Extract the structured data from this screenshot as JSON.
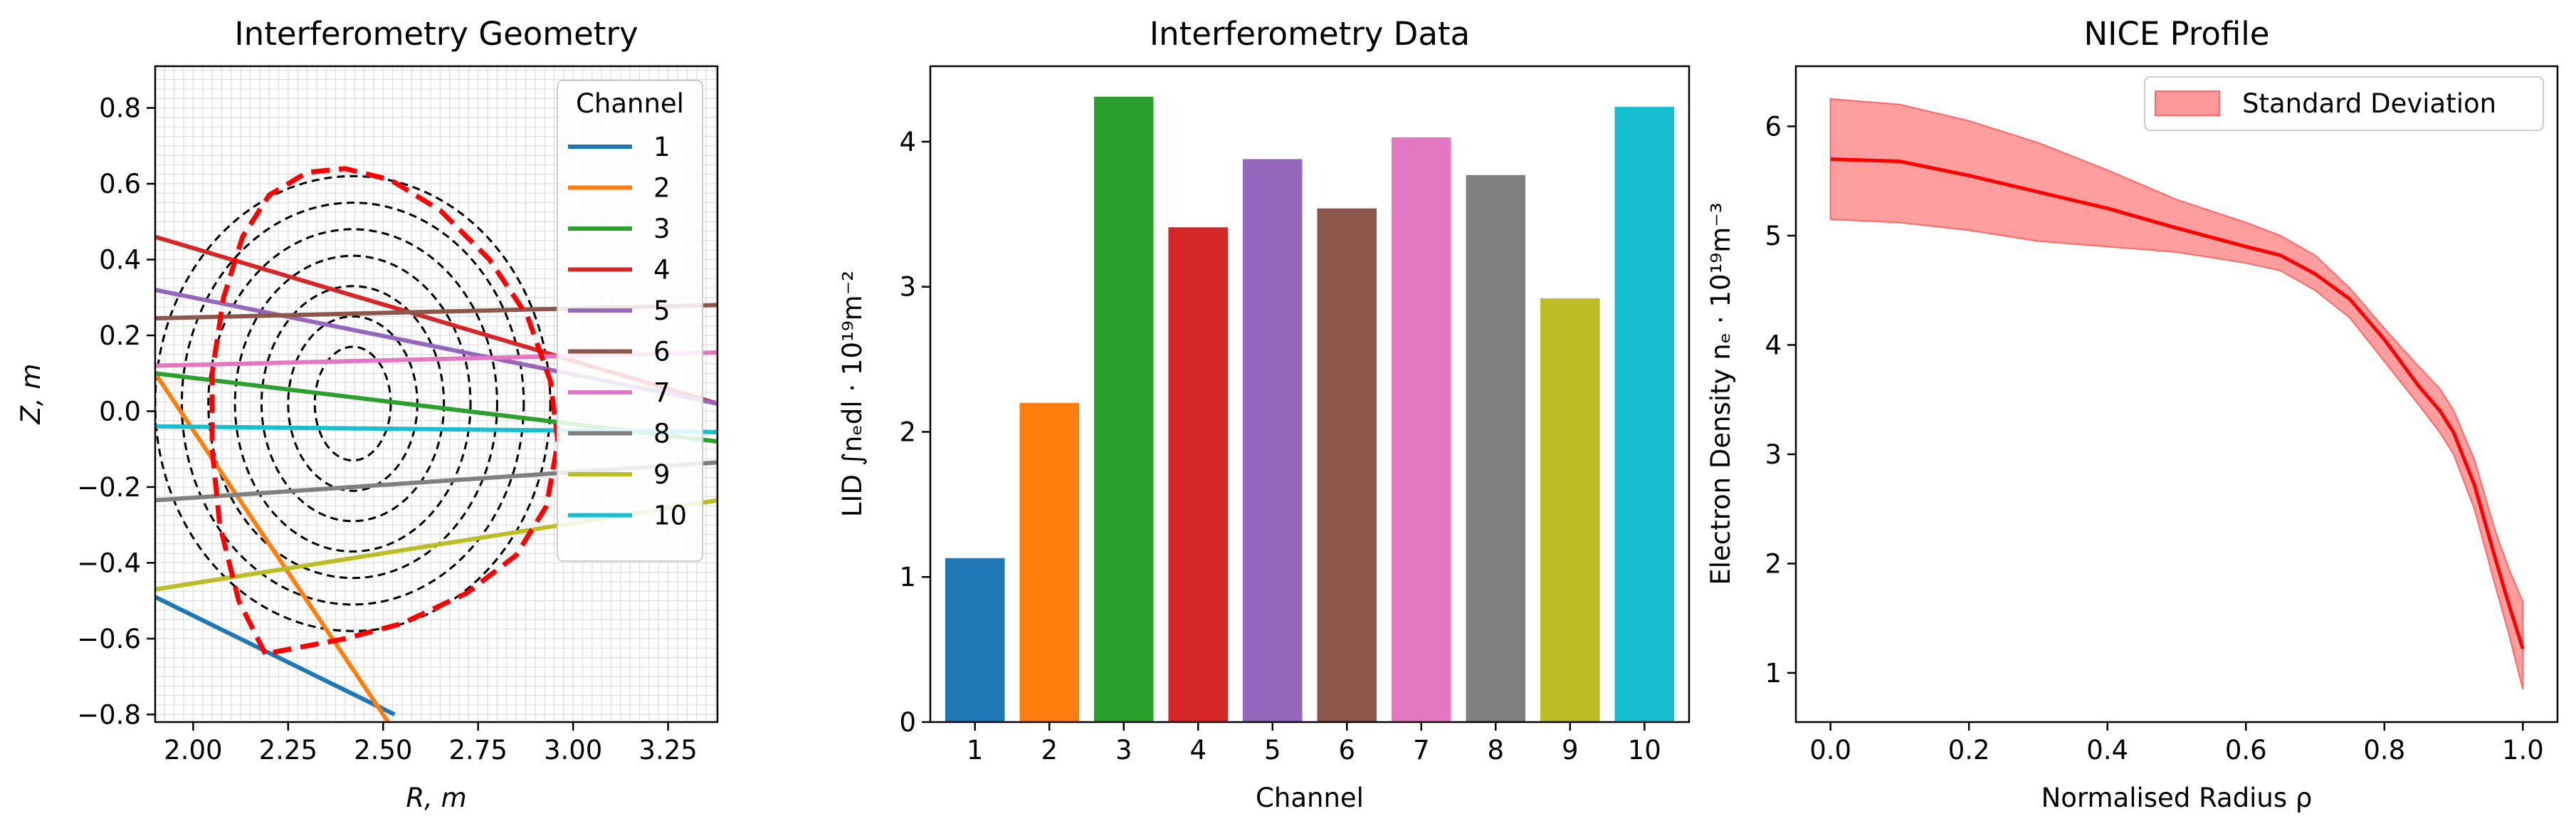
{
  "chart_data": [
    {
      "type": "line",
      "title": "Interferometry Geometry",
      "xlabel": "R, m",
      "ylabel": "Z, m",
      "xlim": [
        1.9,
        3.38
      ],
      "ylim": [
        -0.82,
        0.91
      ],
      "xticks": [
        "2.00",
        "2.25",
        "2.50",
        "2.75",
        "3.00",
        "3.25"
      ],
      "yticks": [
        "−0.8",
        "−0.6",
        "−0.4",
        "−0.2",
        "0.0",
        "0.2",
        "0.4",
        "0.6",
        "0.8"
      ],
      "grid": true,
      "legend": {
        "title": "Channel",
        "placement": "top-right"
      },
      "separatrix": {
        "color": "#ff0000",
        "style": "dashed",
        "points": [
          [
            2.19,
            -0.64
          ],
          [
            2.12,
            -0.5
          ],
          [
            2.07,
            -0.3
          ],
          [
            2.05,
            -0.1
          ],
          [
            2.05,
            0.1
          ],
          [
            2.08,
            0.3
          ],
          [
            2.13,
            0.46
          ],
          [
            2.2,
            0.57
          ],
          [
            2.3,
            0.63
          ],
          [
            2.4,
            0.64
          ],
          [
            2.52,
            0.61
          ],
          [
            2.65,
            0.53
          ],
          [
            2.78,
            0.4
          ],
          [
            2.88,
            0.25
          ],
          [
            2.94,
            0.08
          ],
          [
            2.96,
            -0.08
          ],
          [
            2.93,
            -0.25
          ],
          [
            2.85,
            -0.38
          ],
          [
            2.72,
            -0.48
          ],
          [
            2.55,
            -0.56
          ],
          [
            2.4,
            -0.6
          ],
          [
            2.19,
            -0.64
          ]
        ]
      },
      "flux_surfaces": {
        "color": "#000000",
        "style": "dashed",
        "center": [
          2.42,
          0.02
        ],
        "rx": [
          0.1,
          0.17,
          0.24,
          0.31,
          0.38,
          0.45,
          0.52
        ],
        "ry": [
          0.15,
          0.23,
          0.31,
          0.39,
          0.46,
          0.53,
          0.6
        ]
      },
      "series": [
        {
          "name": "1",
          "color": "#1f77b4",
          "x": [
            1.9,
            2.53
          ],
          "y": [
            -0.49,
            -0.8
          ]
        },
        {
          "name": "2",
          "color": "#ff7f0e",
          "x": [
            1.9,
            2.52
          ],
          "y": [
            0.1,
            -0.83
          ]
        },
        {
          "name": "3",
          "color": "#2ca02c",
          "x": [
            1.9,
            3.38
          ],
          "y": [
            0.1,
            -0.08
          ]
        },
        {
          "name": "4",
          "color": "#d62728",
          "x": [
            1.9,
            3.38
          ],
          "y": [
            0.46,
            0.02
          ]
        },
        {
          "name": "5",
          "color": "#9467bd",
          "x": [
            1.9,
            3.38
          ],
          "y": [
            0.32,
            0.02
          ]
        },
        {
          "name": "6",
          "color": "#8c564b",
          "x": [
            1.9,
            3.38
          ],
          "y": [
            0.245,
            0.28
          ]
        },
        {
          "name": "7",
          "color": "#e377c2",
          "x": [
            1.9,
            3.38
          ],
          "y": [
            0.12,
            0.155
          ]
        },
        {
          "name": "8",
          "color": "#7f7f7f",
          "x": [
            1.9,
            3.38
          ],
          "y": [
            -0.235,
            -0.135
          ]
        },
        {
          "name": "9",
          "color": "#bcbd22",
          "x": [
            1.9,
            3.38
          ],
          "y": [
            -0.47,
            -0.235
          ]
        },
        {
          "name": "10",
          "color": "#17becf",
          "x": [
            1.9,
            3.38
          ],
          "y": [
            -0.04,
            -0.055
          ]
        }
      ]
    },
    {
      "type": "bar",
      "title": "Interferometry Data",
      "xlabel": "Channel",
      "ylabel": "LID ∫nₑdl · 10¹⁹m⁻²",
      "ylim": [
        0,
        4.52
      ],
      "yticks": [
        "0",
        "1",
        "2",
        "3",
        "4"
      ],
      "grid": false,
      "categories": [
        "1",
        "2",
        "3",
        "4",
        "5",
        "6",
        "7",
        "8",
        "9",
        "10"
      ],
      "values": [
        1.13,
        2.2,
        4.31,
        3.41,
        3.88,
        3.54,
        4.03,
        3.77,
        2.92,
        4.24
      ],
      "colors": [
        "#1f77b4",
        "#ff7f0e",
        "#2ca02c",
        "#d62728",
        "#9467bd",
        "#8c564b",
        "#e377c2",
        "#7f7f7f",
        "#bcbd22",
        "#17becf"
      ]
    },
    {
      "type": "area",
      "title": "NICE Profile",
      "xlabel": "Normalised Radius ρ",
      "ylabel": "Electron Density nₑ · 10¹⁹m⁻³",
      "xlim": [
        -0.05,
        1.05
      ],
      "ylim": [
        0.55,
        6.55
      ],
      "xticks": [
        "0.0",
        "0.2",
        "0.4",
        "0.6",
        "0.8",
        "1.0"
      ],
      "yticks": [
        "1",
        "2",
        "3",
        "4",
        "5",
        "6"
      ],
      "grid": false,
      "legend": {
        "placement": "top-right"
      },
      "series": [
        {
          "name": "Standard Deviation",
          "color": "#ff9999",
          "x": [
            0.0,
            0.1,
            0.2,
            0.3,
            0.4,
            0.5,
            0.6,
            0.65,
            0.7,
            0.75,
            0.8,
            0.85,
            0.88,
            0.9,
            0.93,
            0.96,
            0.98,
            1.0
          ],
          "lower": [
            5.15,
            5.12,
            5.05,
            4.95,
            4.9,
            4.85,
            4.75,
            4.68,
            4.5,
            4.25,
            3.85,
            3.45,
            3.2,
            3.0,
            2.5,
            1.8,
            1.35,
            0.85
          ],
          "upper": [
            6.25,
            6.2,
            6.05,
            5.85,
            5.6,
            5.33,
            5.12,
            5.0,
            4.82,
            4.52,
            4.15,
            3.8,
            3.6,
            3.4,
            2.95,
            2.3,
            1.95,
            1.65
          ]
        },
        {
          "color": "#ff0000",
          "x": [
            0.0,
            0.1,
            0.2,
            0.3,
            0.4,
            0.5,
            0.6,
            0.65,
            0.7,
            0.75,
            0.8,
            0.85,
            0.88,
            0.9,
            0.93,
            0.96,
            0.98,
            1.0
          ],
          "y": [
            5.7,
            5.68,
            5.55,
            5.4,
            5.25,
            5.07,
            4.9,
            4.82,
            4.65,
            4.42,
            4.05,
            3.62,
            3.4,
            3.2,
            2.72,
            2.05,
            1.62,
            1.22
          ]
        }
      ]
    }
  ]
}
